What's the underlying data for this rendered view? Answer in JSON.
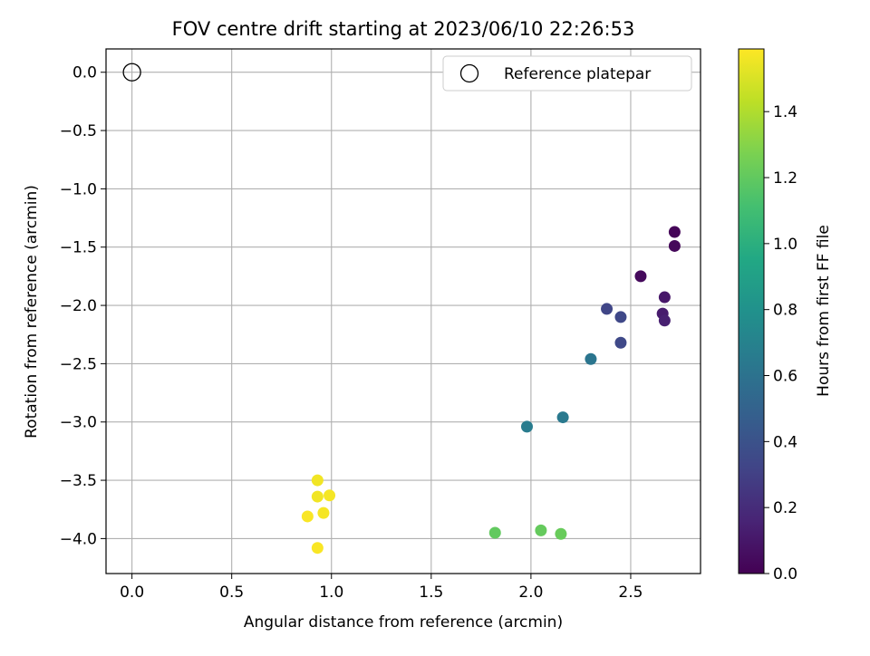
{
  "chart_data": {
    "type": "scatter",
    "title": "FOV centre drift starting at 2023/06/10 22:26:53",
    "xlabel": "Angular distance from reference (arcmin)",
    "ylabel": "Rotation from reference (arcmin)",
    "xlim": [
      -0.13,
      2.85
    ],
    "ylim": [
      -4.3,
      0.2
    ],
    "xticks": [
      0.0,
      0.5,
      1.0,
      1.5,
      2.0,
      2.5
    ],
    "yticks": [
      0.0,
      -0.5,
      -1.0,
      -1.5,
      -2.0,
      -2.5,
      -3.0,
      -3.5,
      -4.0
    ],
    "xtick_labels": [
      "0.0",
      "0.5",
      "1.0",
      "1.5",
      "2.0",
      "2.5"
    ],
    "ytick_labels": [
      "0.0",
      "−0.5",
      "−1.0",
      "−1.5",
      "−2.0",
      "−2.5",
      "−3.0",
      "−3.5",
      "−4.0"
    ],
    "grid": true,
    "legend": {
      "placement": "top-right",
      "entries": [
        {
          "label": "Reference platepar",
          "marker": "open-circle"
        }
      ]
    },
    "reference_point": {
      "x": 0.0,
      "y": 0.0
    },
    "colorbar": {
      "label": "Hours from first FF file",
      "colormap": "viridis",
      "range": [
        0.0,
        1.59
      ],
      "ticks": [
        0.0,
        0.2,
        0.4,
        0.6,
        0.8,
        1.0,
        1.2,
        1.4
      ],
      "tick_labels": [
        "0.0",
        "0.2",
        "0.4",
        "0.6",
        "0.8",
        "1.0",
        "1.2",
        "1.4"
      ]
    },
    "points": [
      {
        "x": 2.72,
        "y": -1.37,
        "c": 0.02
      },
      {
        "x": 2.72,
        "y": -1.49,
        "c": 0.03
      },
      {
        "x": 2.55,
        "y": -1.75,
        "c": 0.04
      },
      {
        "x": 2.67,
        "y": -1.93,
        "c": 0.1
      },
      {
        "x": 2.66,
        "y": -2.07,
        "c": 0.12
      },
      {
        "x": 2.67,
        "y": -2.13,
        "c": 0.14
      },
      {
        "x": 2.38,
        "y": -2.03,
        "c": 0.33
      },
      {
        "x": 2.45,
        "y": -2.1,
        "c": 0.34
      },
      {
        "x": 2.45,
        "y": -2.32,
        "c": 0.35
      },
      {
        "x": 2.3,
        "y": -2.46,
        "c": 0.62
      },
      {
        "x": 2.16,
        "y": -2.96,
        "c": 0.64
      },
      {
        "x": 1.98,
        "y": -3.04,
        "c": 0.66
      },
      {
        "x": 1.82,
        "y": -3.95,
        "c": 1.2
      },
      {
        "x": 2.05,
        "y": -3.93,
        "c": 1.21
      },
      {
        "x": 2.15,
        "y": -3.96,
        "c": 1.22
      },
      {
        "x": 0.93,
        "y": -3.5,
        "c": 1.56
      },
      {
        "x": 0.93,
        "y": -3.64,
        "c": 1.56
      },
      {
        "x": 0.99,
        "y": -3.63,
        "c": 1.57
      },
      {
        "x": 0.96,
        "y": -3.78,
        "c": 1.57
      },
      {
        "x": 0.88,
        "y": -3.81,
        "c": 1.58
      },
      {
        "x": 0.93,
        "y": -4.08,
        "c": 1.58
      }
    ]
  }
}
